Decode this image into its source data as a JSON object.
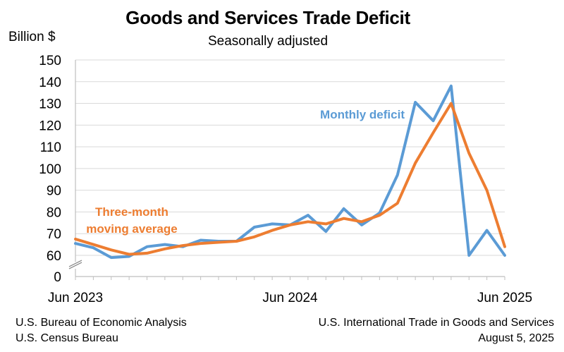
{
  "chart_data": {
    "type": "line",
    "title": "Goods and Services Trade Deficit",
    "subtitle": "Seasonally adjusted",
    "ylabel": "Billion $",
    "ylim": [
      0,
      150
    ],
    "yticks": [
      0,
      60,
      70,
      80,
      90,
      100,
      110,
      120,
      130,
      140,
      150
    ],
    "axis_break": true,
    "xtick_labels": [
      {
        "index": 0,
        "label": "Jun 2023"
      },
      {
        "index": 12,
        "label": "Jun 2024"
      },
      {
        "index": 24,
        "label": "Jun 2025"
      }
    ],
    "x": [
      "Jun 2023",
      "Jul 2023",
      "Aug 2023",
      "Sep 2023",
      "Oct 2023",
      "Nov 2023",
      "Dec 2023",
      "Jan 2024",
      "Feb 2024",
      "Mar 2024",
      "Apr 2024",
      "May 2024",
      "Jun 2024",
      "Jul 2024",
      "Aug 2024",
      "Sep 2024",
      "Oct 2024",
      "Nov 2024",
      "Dec 2024",
      "Jan 2025",
      "Feb 2025",
      "Mar 2025",
      "Apr 2025",
      "May 2025",
      "Jun 2025"
    ],
    "grid": true,
    "series": [
      {
        "name": "Monthly deficit",
        "color": "#5b9bd5",
        "values": [
          65.5,
          63.5,
          59,
          59.5,
          64,
          65,
          64,
          67,
          66.5,
          66.5,
          73,
          74.5,
          74,
          78.5,
          71,
          81.5,
          74,
          79.5,
          97,
          130.5,
          122,
          138,
          60,
          71.5,
          60
        ]
      },
      {
        "name": "Three-month moving average",
        "color": "#ed7d31",
        "values": [
          67.5,
          65,
          62.5,
          60.5,
          61,
          63,
          64.5,
          65.5,
          66,
          66.5,
          68.5,
          71.5,
          74,
          75.5,
          74.5,
          77,
          75.5,
          78.5,
          84,
          102.5,
          116.5,
          130,
          107,
          90,
          64
        ]
      }
    ]
  },
  "footer": {
    "source_line1": "U.S. Bureau of Economic Analysis",
    "source_line2": "U.S. Census Bureau",
    "report_line1": "U.S. International Trade in Goods and Services",
    "report_line2": "August 5, 2025"
  }
}
